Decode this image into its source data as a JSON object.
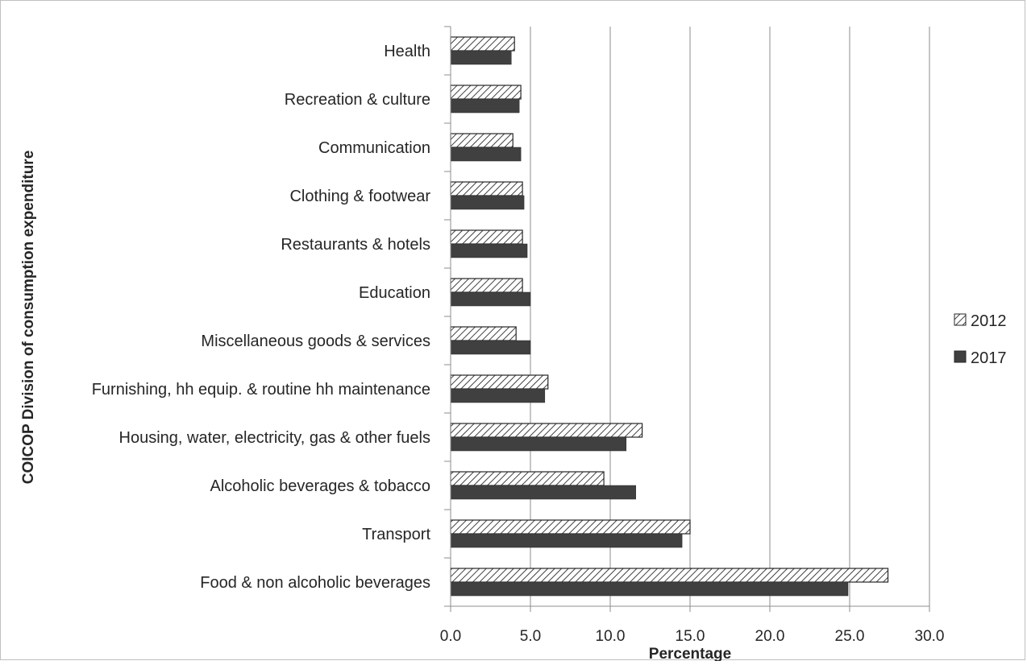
{
  "chart_data": {
    "type": "bar",
    "orientation": "horizontal",
    "title": "",
    "xlabel": "Percentage",
    "ylabel": "COICOP Division of consumption expenditure",
    "xlim": [
      0,
      30
    ],
    "xticks": [
      "0.0",
      "5.0",
      "10.0",
      "15.0",
      "20.0",
      "25.0",
      "30.0"
    ],
    "grid": "vertical major gridlines",
    "legend_position": "right",
    "categories": [
      "Health",
      "Recreation & culture",
      "Communication",
      "Clothing & footwear",
      "Restaurants & hotels",
      "Education",
      "Miscellaneous goods & services",
      "Furnishing, hh equip. & routine hh maintenance",
      "Housing, water, electricity, gas & other fuels",
      "Alcoholic beverages & tobacco",
      "Transport",
      "Food & non alcoholic beverages"
    ],
    "series": [
      {
        "name": "2012",
        "pattern": "hatched",
        "color": "#ffffff",
        "values": [
          4.0,
          4.4,
          3.9,
          4.5,
          4.5,
          4.5,
          4.1,
          6.1,
          12.0,
          9.6,
          15.0,
          27.4
        ]
      },
      {
        "name": "2017",
        "pattern": "solid",
        "color": "#404040",
        "values": [
          3.8,
          4.3,
          4.4,
          4.6,
          4.8,
          5.0,
          5.0,
          5.9,
          11.0,
          11.6,
          14.5,
          24.9
        ]
      }
    ]
  }
}
